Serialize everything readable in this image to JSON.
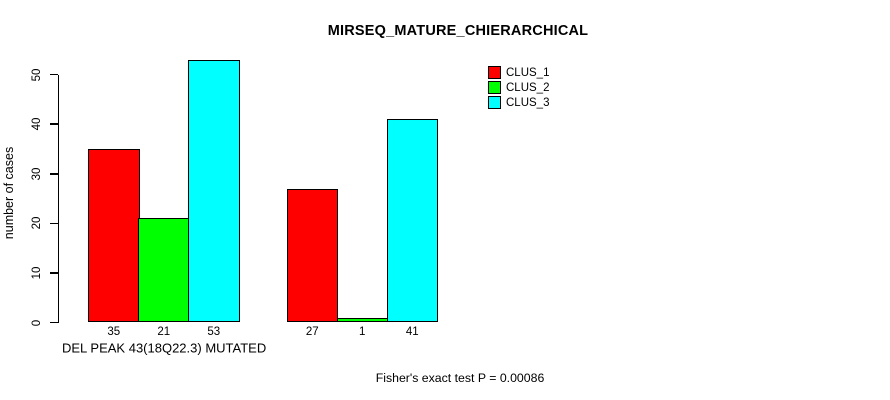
{
  "chart_data": {
    "type": "bar",
    "title": "MIRSEQ_MATURE_CHIERARCHICAL",
    "ylabel": "number of cases",
    "xlabel": "DEL PEAK 43(18Q22.3) MUTATED",
    "footnote": "Fisher's exact test P = 0.00086",
    "ylim": [
      0,
      50
    ],
    "yticks": [
      0,
      10,
      20,
      30,
      40,
      50
    ],
    "grid": false,
    "num_groups": 2,
    "show_values_under_bars": true,
    "legend_position": "top-right",
    "series": [
      {
        "name": "CLUS_1",
        "color": "#ff0000",
        "values": [
          35,
          27
        ]
      },
      {
        "name": "CLUS_2",
        "color": "#00ff00",
        "values": [
          21,
          1
        ]
      },
      {
        "name": "CLUS_3",
        "color": "#00ffff",
        "values": [
          53,
          41
        ]
      }
    ]
  },
  "colors": {
    "background": "#ffffff",
    "axis": "#000000",
    "text": "#000000"
  }
}
